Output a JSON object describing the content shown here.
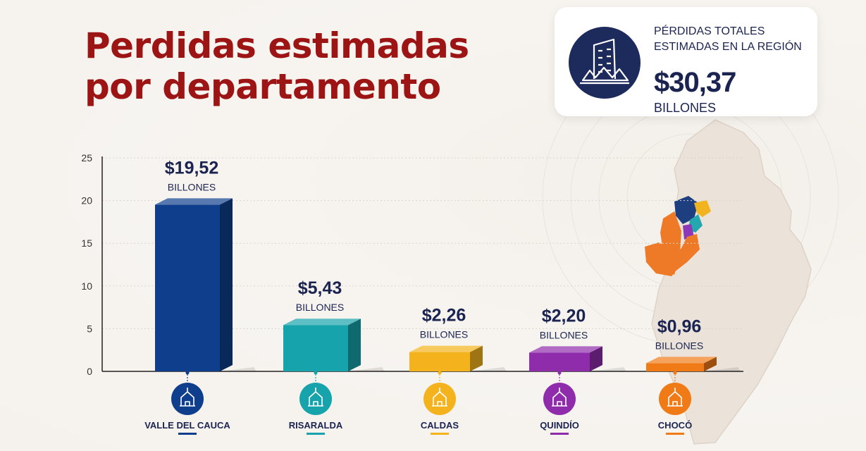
{
  "title": {
    "line1": "Perdidas estimadas",
    "line2": "por departamento"
  },
  "summary": {
    "label": "PÉRDIDAS TOTALES ESTIMADAS EN LA REGIÓN",
    "value": "$30,37",
    "unit": "BILLONES",
    "icon": "building-icon"
  },
  "chart_data": {
    "type": "bar",
    "categories": [
      "VALLE DEL CAUCA",
      "RISARALDA",
      "CALDAS",
      "QUINDÍO",
      "CHOCÓ"
    ],
    "values": [
      19.52,
      5.43,
      2.26,
      2.2,
      0.96
    ],
    "value_labels": [
      "$19,52",
      "$5,43",
      "$2,26",
      "$2,20",
      "$0,96"
    ],
    "value_unit": "BILLONES",
    "colors": [
      "#0f3f8c",
      "#17a3ab",
      "#f4b31c",
      "#8f2cab",
      "#f07a16"
    ],
    "icons": [
      "church-icon",
      "mountain-icon",
      "cathedral-icon",
      "palm-house-icon",
      "palm-tree-icon"
    ],
    "ylim": [
      0,
      25
    ],
    "yticks": [
      0,
      5,
      10,
      15,
      20,
      25
    ],
    "grid": true,
    "xlabel": "",
    "ylabel": ""
  },
  "map": {
    "colors": [
      "#ee7a27",
      "#1d3f80",
      "#25a7b0",
      "#f2b320",
      "#8d39b7"
    ]
  }
}
